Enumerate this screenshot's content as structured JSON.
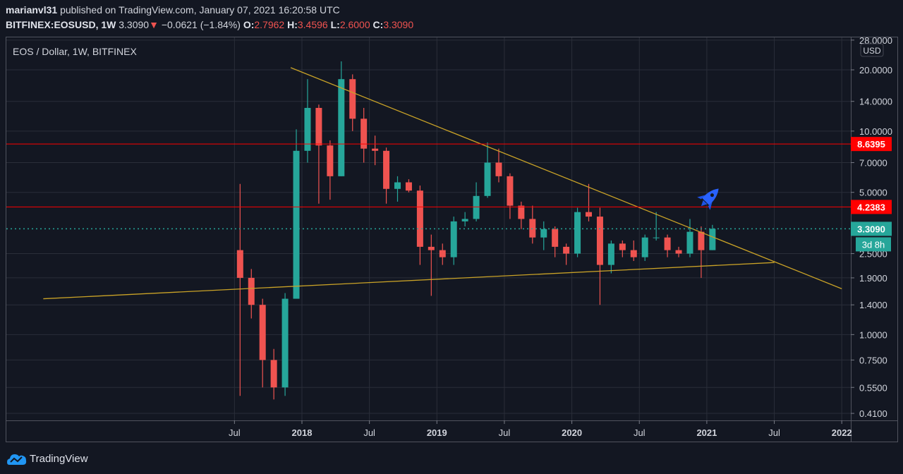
{
  "header": {
    "publisher": "marianvl31",
    "published_text": "published on TradingView.com, January 07, 2021 16:20:58 UTC",
    "symbol": "BITFINEX:EOSUSD, 1W",
    "last": "3.3090",
    "change": "−0.0621 (−1.84%)",
    "o_label": "O:",
    "o": "2.7962",
    "h_label": "H:",
    "h": "3.4596",
    "l_label": "L:",
    "l": "2.6000",
    "c_label": "C:",
    "c": "3.3090"
  },
  "footer": {
    "logo_text": "TradingView"
  },
  "chart_data": {
    "type": "candlestick",
    "title": "EOS / Dollar, 1W, BITFINEX",
    "currency": "USD",
    "y_scale": "log",
    "ylim": [
      0.38,
      29
    ],
    "grid": true,
    "colors": {
      "up": "#26a69a",
      "down": "#ef5350",
      "trend": "#c9a227",
      "level": "#ff0000",
      "current": "#26a69a",
      "rocket": "#2962ff"
    },
    "y_ticks": [
      "28.0000",
      "20.0000",
      "14.0000",
      "10.0000",
      "7.0000",
      "5.0000",
      "2.5000",
      "1.9000",
      "1.4000",
      "1.0000",
      "0.7500",
      "0.5500",
      "0.4100"
    ],
    "x_ticks": [
      {
        "label": "Jul",
        "date": "2017-07"
      },
      {
        "label": "2018",
        "date": "2018-01"
      },
      {
        "label": "Jul",
        "date": "2018-07"
      },
      {
        "label": "2019",
        "date": "2019-01"
      },
      {
        "label": "Jul",
        "date": "2019-07"
      },
      {
        "label": "2020",
        "date": "2020-01"
      },
      {
        "label": "Jul",
        "date": "2020-07"
      },
      {
        "label": "2021",
        "date": "2021-01"
      },
      {
        "label": "Jul",
        "date": "2021-07"
      },
      {
        "label": "2022",
        "date": "2022-01"
      }
    ],
    "levels": [
      {
        "price": 8.6395,
        "label": "8.6395",
        "style": "solid",
        "color": "#ff0000"
      },
      {
        "price": 4.2383,
        "label": "4.2383",
        "style": "solid",
        "color": "#ff0000"
      },
      {
        "price": 3.309,
        "label": "3.3090",
        "style": "dotted",
        "color": "#26a69a",
        "countdown": "3d 8h"
      }
    ],
    "trend_lines": [
      {
        "from": {
          "date": "2017-12",
          "price": 20.5
        },
        "to": {
          "date": "2022-01",
          "price": 1.68
        }
      },
      {
        "from": {
          "date": "2016-02",
          "price": 1.5
        },
        "to": {
          "date": "2021-07",
          "price": 2.26
        }
      }
    ],
    "annotation": {
      "icon": "rocket",
      "date": "2021-01",
      "price": 5.1
    },
    "candles": [
      {
        "d": "2017-07",
        "o": 2.6,
        "h": 5.5,
        "l": 0.5,
        "c": 1.9
      },
      {
        "d": "2017-08",
        "o": 1.9,
        "h": 2.1,
        "l": 1.2,
        "c": 1.4
      },
      {
        "d": "2017-09",
        "o": 1.4,
        "h": 1.5,
        "l": 0.55,
        "c": 0.75
      },
      {
        "d": "2017-10",
        "o": 0.75,
        "h": 0.85,
        "l": 0.48,
        "c": 0.55
      },
      {
        "d": "2017-11",
        "o": 0.55,
        "h": 1.6,
        "l": 0.5,
        "c": 1.5
      },
      {
        "d": "2017-12",
        "o": 1.5,
        "h": 10.2,
        "l": 1.5,
        "c": 8.0
      },
      {
        "d": "2018-01",
        "o": 8.0,
        "h": 18.0,
        "l": 7.0,
        "c": 13.0
      },
      {
        "d": "2018-02",
        "o": 13.0,
        "h": 13.5,
        "l": 4.4,
        "c": 8.5
      },
      {
        "d": "2018-03",
        "o": 8.5,
        "h": 9.0,
        "l": 4.6,
        "c": 6.0
      },
      {
        "d": "2018-04",
        "o": 6.0,
        "h": 22.0,
        "l": 6.0,
        "c": 18.0
      },
      {
        "d": "2018-05",
        "o": 18.0,
        "h": 19.0,
        "l": 10.0,
        "c": 11.5
      },
      {
        "d": "2018-06",
        "o": 11.5,
        "h": 13.0,
        "l": 7.0,
        "c": 8.2
      },
      {
        "d": "2018-07",
        "o": 8.2,
        "h": 9.5,
        "l": 6.8,
        "c": 8.0
      },
      {
        "d": "2018-08",
        "o": 8.0,
        "h": 8.3,
        "l": 4.4,
        "c": 5.2
      },
      {
        "d": "2018-09",
        "o": 5.2,
        "h": 6.0,
        "l": 4.5,
        "c": 5.6
      },
      {
        "d": "2018-10",
        "o": 5.6,
        "h": 5.8,
        "l": 5.0,
        "c": 5.1
      },
      {
        "d": "2018-11",
        "o": 5.1,
        "h": 5.4,
        "l": 2.2,
        "c": 2.7
      },
      {
        "d": "2018-12",
        "o": 2.7,
        "h": 3.1,
        "l": 1.55,
        "c": 2.6
      },
      {
        "d": "2019-01",
        "o": 2.6,
        "h": 2.8,
        "l": 2.2,
        "c": 2.4
      },
      {
        "d": "2019-02",
        "o": 2.4,
        "h": 3.8,
        "l": 2.2,
        "c": 3.6
      },
      {
        "d": "2019-03",
        "o": 3.6,
        "h": 4.0,
        "l": 3.4,
        "c": 3.7
      },
      {
        "d": "2019-04",
        "o": 3.7,
        "h": 5.6,
        "l": 3.6,
        "c": 4.8
      },
      {
        "d": "2019-05",
        "o": 4.8,
        "h": 8.8,
        "l": 4.7,
        "c": 7.0
      },
      {
        "d": "2019-06",
        "o": 7.0,
        "h": 8.2,
        "l": 5.6,
        "c": 6.0
      },
      {
        "d": "2019-07",
        "o": 6.0,
        "h": 6.2,
        "l": 3.7,
        "c": 4.3
      },
      {
        "d": "2019-08",
        "o": 4.3,
        "h": 4.5,
        "l": 3.3,
        "c": 3.7
      },
      {
        "d": "2019-09",
        "o": 3.7,
        "h": 4.3,
        "l": 2.8,
        "c": 3.0
      },
      {
        "d": "2019-10",
        "o": 3.0,
        "h": 3.6,
        "l": 2.6,
        "c": 3.3
      },
      {
        "d": "2019-11",
        "o": 3.3,
        "h": 3.4,
        "l": 2.4,
        "c": 2.7
      },
      {
        "d": "2019-12",
        "o": 2.7,
        "h": 2.8,
        "l": 2.2,
        "c": 2.5
      },
      {
        "d": "2020-01",
        "o": 2.5,
        "h": 4.2,
        "l": 2.4,
        "c": 4.0
      },
      {
        "d": "2020-02",
        "o": 4.0,
        "h": 5.5,
        "l": 3.6,
        "c": 3.8
      },
      {
        "d": "2020-03",
        "o": 3.8,
        "h": 4.2,
        "l": 1.4,
        "c": 2.2
      },
      {
        "d": "2020-04",
        "o": 2.2,
        "h": 2.9,
        "l": 2.0,
        "c": 2.8
      },
      {
        "d": "2020-05",
        "o": 2.8,
        "h": 2.9,
        "l": 2.4,
        "c": 2.6
      },
      {
        "d": "2020-06",
        "o": 2.6,
        "h": 2.9,
        "l": 2.3,
        "c": 2.4
      },
      {
        "d": "2020-07",
        "o": 2.4,
        "h": 3.1,
        "l": 2.3,
        "c": 3.0
      },
      {
        "d": "2020-08",
        "o": 3.0,
        "h": 4.0,
        "l": 2.9,
        "c": 3.0
      },
      {
        "d": "2020-09",
        "o": 3.0,
        "h": 3.1,
        "l": 2.4,
        "c": 2.6
      },
      {
        "d": "2020-10",
        "o": 2.6,
        "h": 2.7,
        "l": 2.4,
        "c": 2.5
      },
      {
        "d": "2020-11",
        "o": 2.5,
        "h": 3.7,
        "l": 2.4,
        "c": 3.2
      },
      {
        "d": "2020-12",
        "o": 3.2,
        "h": 3.4,
        "l": 1.9,
        "c": 2.6
      },
      {
        "d": "2021-01",
        "o": 2.6,
        "h": 3.46,
        "l": 2.6,
        "c": 3.31
      }
    ]
  }
}
